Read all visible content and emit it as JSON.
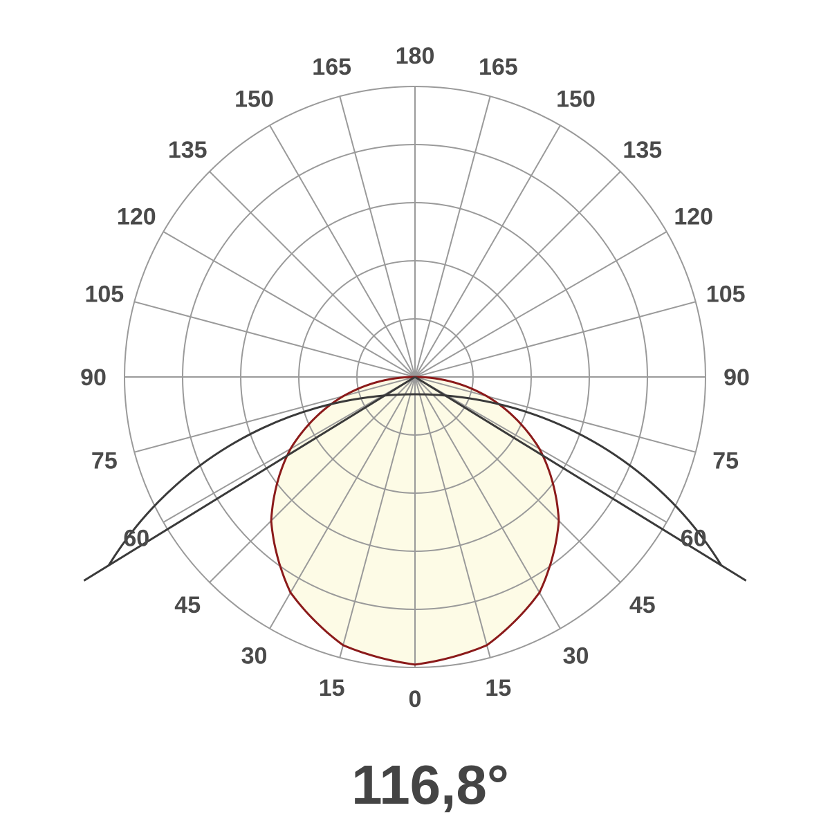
{
  "chart_data": {
    "type": "polar",
    "title": "116,8°",
    "angle_ticks": [
      "0",
      "15",
      "30",
      "45",
      "60",
      "75",
      "90",
      "105",
      "120",
      "135",
      "150",
      "165",
      "180"
    ],
    "angle_step_deg": 15,
    "ring_count": 5,
    "grid": true,
    "beam_angle_deg": 116.8,
    "series": [
      {
        "angles_deg": [
          -90,
          -75,
          -60,
          -45,
          -30,
          -15,
          0,
          15,
          30,
          45,
          60,
          75,
          90
        ],
        "relative_intensity": [
          0,
          0.256,
          0.495,
          0.7,
          0.857,
          0.956,
          0.99,
          0.956,
          0.857,
          0.7,
          0.495,
          0.256,
          0
        ]
      }
    ],
    "colors": {
      "curve": "#8b1a1a",
      "fill": "#fdfbe6",
      "grid": "#9a9a9a",
      "beam": "#3a3a3a",
      "text": "#4a4a4a"
    }
  }
}
